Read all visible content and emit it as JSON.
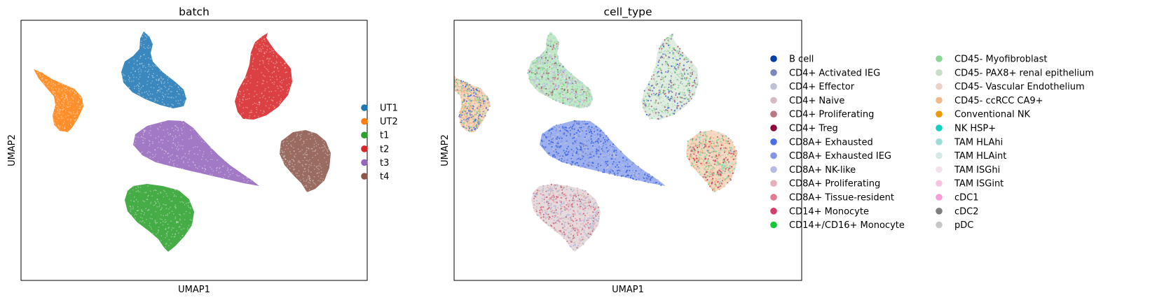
{
  "chart_data": [
    {
      "type": "scatter",
      "title": "batch",
      "xlabel": "UMAP1",
      "ylabel": "UMAP2",
      "xlim": [
        0,
        100
      ],
      "ylim": [
        0,
        100
      ],
      "ticks": "none",
      "grid": false,
      "legend_placement": "right",
      "legend_columns": 1,
      "series": [
        {
          "name": "UT1",
          "color": "#1f77b4"
        },
        {
          "name": "UT2",
          "color": "#ff7f0e"
        },
        {
          "name": "t1",
          "color": "#2ca02c"
        },
        {
          "name": "t2",
          "color": "#d62728"
        },
        {
          "name": "t3",
          "color": "#9467bd"
        },
        {
          "name": "t4",
          "color": "#8c564b"
        }
      ]
    },
    {
      "type": "scatter",
      "title": "cell_type",
      "xlabel": "UMAP1",
      "ylabel": "UMAP2",
      "xlim": [
        0,
        100
      ],
      "ylim": [
        0,
        100
      ],
      "ticks": "none",
      "grid": false,
      "legend_placement": "right",
      "legend_columns": 2,
      "series": [
        {
          "name": "B cell",
          "color": "#023fa5"
        },
        {
          "name": "CD4+ Activated IEG",
          "color": "#7d87b9"
        },
        {
          "name": "CD4+ Effector",
          "color": "#bec1d4"
        },
        {
          "name": "CD4+ Naive",
          "color": "#d6bcc0"
        },
        {
          "name": "CD4+ Proliferating",
          "color": "#bb7784"
        },
        {
          "name": "CD4+ Treg",
          "color": "#8e063b"
        },
        {
          "name": "CD8A+ Exhausted",
          "color": "#4a6fe3"
        },
        {
          "name": "CD8A+ Exhausted IEG",
          "color": "#8595e1"
        },
        {
          "name": "CD8A+ NK-like",
          "color": "#b5bbe3"
        },
        {
          "name": "CD8A+ Proliferating",
          "color": "#e6afb9"
        },
        {
          "name": "CD8A+ Tissue-resident",
          "color": "#e07b91"
        },
        {
          "name": "CD14+ Monocyte",
          "color": "#d33f6a"
        },
        {
          "name": "CD14+/CD16+ Monocyte",
          "color": "#11c638"
        },
        {
          "name": "CD45- Myofibroblast",
          "color": "#8dd593"
        },
        {
          "name": "CD45- PAX8+ renal epithelium",
          "color": "#c6dec7"
        },
        {
          "name": "CD45- Vascular Endothelium",
          "color": "#ead3c6"
        },
        {
          "name": "CD45- ccRCC CA9+",
          "color": "#f0b98d"
        },
        {
          "name": "Conventional NK",
          "color": "#ef9708"
        },
        {
          "name": "NK HSP+",
          "color": "#0fcfc0"
        },
        {
          "name": "TAM HLAhi",
          "color": "#9cded6"
        },
        {
          "name": "TAM HLAint",
          "color": "#d5eae7"
        },
        {
          "name": "TAM ISGhi",
          "color": "#f3e1eb"
        },
        {
          "name": "TAM ISGint",
          "color": "#f6c4e1"
        },
        {
          "name": "cDC1",
          "color": "#f79cd4"
        },
        {
          "name": "cDC2",
          "color": "#7f7f7f"
        },
        {
          "name": "pDC",
          "color": "#c7c7c7"
        }
      ]
    }
  ]
}
